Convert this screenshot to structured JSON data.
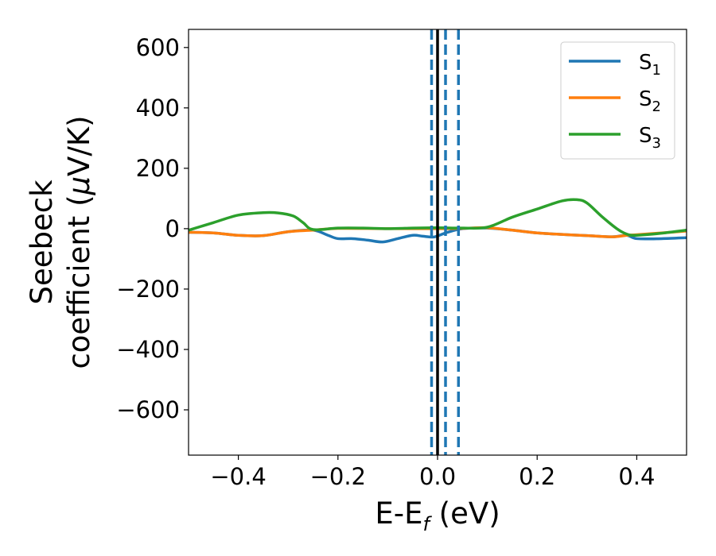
{
  "chart_data": {
    "type": "line",
    "xlabel": {
      "main": "E-E",
      "sub": "f",
      "unit": " (eV)"
    },
    "ylabel": {
      "line1": "Seebeck",
      "line2_main": "coefficient  (",
      "mu": "μ",
      "line2_unit": "V/K)"
    },
    "xlim": [
      -0.5,
      0.5
    ],
    "ylim": [
      -750,
      660
    ],
    "xticks": [
      -0.4,
      -0.2,
      0.0,
      0.2,
      0.4
    ],
    "xtick_labels": [
      "−0.4",
      "−0.2",
      "0.0",
      "0.2",
      "0.4"
    ],
    "yticks": [
      600,
      400,
      200,
      0,
      -200,
      -400,
      -600
    ],
    "ytick_labels": [
      "600",
      "400",
      "200",
      "0",
      "−200",
      "−400",
      "−600"
    ],
    "grid": false,
    "legend_position": "top-right",
    "series": [
      {
        "name": "S",
        "sub": "1",
        "color": "#1f77b4",
        "x": [
          -0.5,
          -0.45,
          -0.4,
          -0.35,
          -0.3,
          -0.25,
          -0.22,
          -0.2,
          -0.17,
          -0.14,
          -0.11,
          -0.08,
          -0.05,
          -0.03,
          -0.01,
          0.0,
          0.02,
          0.05,
          0.1,
          0.15,
          0.2,
          0.25,
          0.3,
          0.35,
          0.38,
          0.4,
          0.45,
          0.5
        ],
        "y": [
          -12,
          -14,
          -22,
          -23,
          -10,
          -5,
          -22,
          -33,
          -33,
          -38,
          -44,
          -33,
          -22,
          -25,
          -28,
          -24,
          -12,
          0,
          2,
          -5,
          -14,
          -19,
          -23,
          -27,
          -22,
          -33,
          -33,
          -30
        ]
      },
      {
        "name": "S",
        "sub": "2",
        "color": "#ff7f0e",
        "x": [
          -0.5,
          -0.45,
          -0.4,
          -0.35,
          -0.3,
          -0.25,
          -0.2,
          -0.1,
          0.0,
          0.05,
          0.1,
          0.15,
          0.2,
          0.25,
          0.3,
          0.35,
          0.38,
          0.4,
          0.45,
          0.5
        ],
        "y": [
          -12,
          -14,
          -22,
          -23,
          -10,
          -5,
          1,
          0,
          0,
          1,
          3,
          -5,
          -14,
          -19,
          -23,
          -27,
          -22,
          -20,
          -14,
          -8
        ]
      },
      {
        "name": "S",
        "sub": "3",
        "color": "#2ca02c",
        "x": [
          -0.5,
          -0.45,
          -0.4,
          -0.35,
          -0.32,
          -0.29,
          -0.27,
          -0.25,
          -0.2,
          -0.15,
          -0.1,
          -0.05,
          0.0,
          0.05,
          0.1,
          0.15,
          0.2,
          0.25,
          0.28,
          0.3,
          0.33,
          0.36,
          0.38,
          0.4,
          0.45,
          0.5
        ],
        "y": [
          -5,
          20,
          45,
          53,
          52,
          42,
          20,
          -3,
          2,
          2,
          0,
          2,
          3,
          2,
          5,
          38,
          65,
          92,
          96,
          85,
          40,
          0,
          -18,
          -22,
          -15,
          -5
        ]
      }
    ],
    "vertical_lines": [
      {
        "x": 0.0,
        "color": "#000000",
        "style": "solid"
      },
      {
        "x": -0.012,
        "color": "#1f77b4",
        "style": "dashed"
      },
      {
        "x": 0.016,
        "color": "#1f77b4",
        "style": "dashed"
      },
      {
        "x": 0.042,
        "color": "#1f77b4",
        "style": "dashed"
      }
    ]
  }
}
